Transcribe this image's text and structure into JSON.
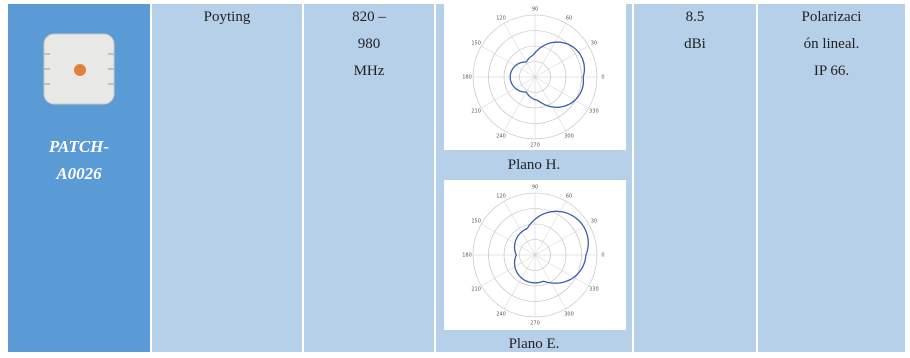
{
  "table": {
    "rows": [
      {
        "model": [
          "PATCH-",
          "A0026"
        ],
        "type": "Poyting",
        "frequency": [
          "820 –",
          "980",
          "MHz"
        ],
        "plots": [
          {
            "caption": "Plano H.",
            "angle_labels": [
              "90",
              "60",
              "30",
              "0",
              "330",
              "300",
              "270",
              "240",
              "210",
              "180",
              "150",
              "120"
            ]
          },
          {
            "caption": "Plano E.",
            "angle_labels": [
              "90",
              "60",
              "30",
              "0",
              "330",
              "300",
              "270",
              "240",
              "210",
              "180",
              "150",
              "120"
            ]
          }
        ],
        "gain": [
          "8.5",
          "dBi"
        ],
        "notes": [
          "Polarizaci",
          "ón lineal.",
          "IP 66."
        ]
      }
    ]
  }
}
